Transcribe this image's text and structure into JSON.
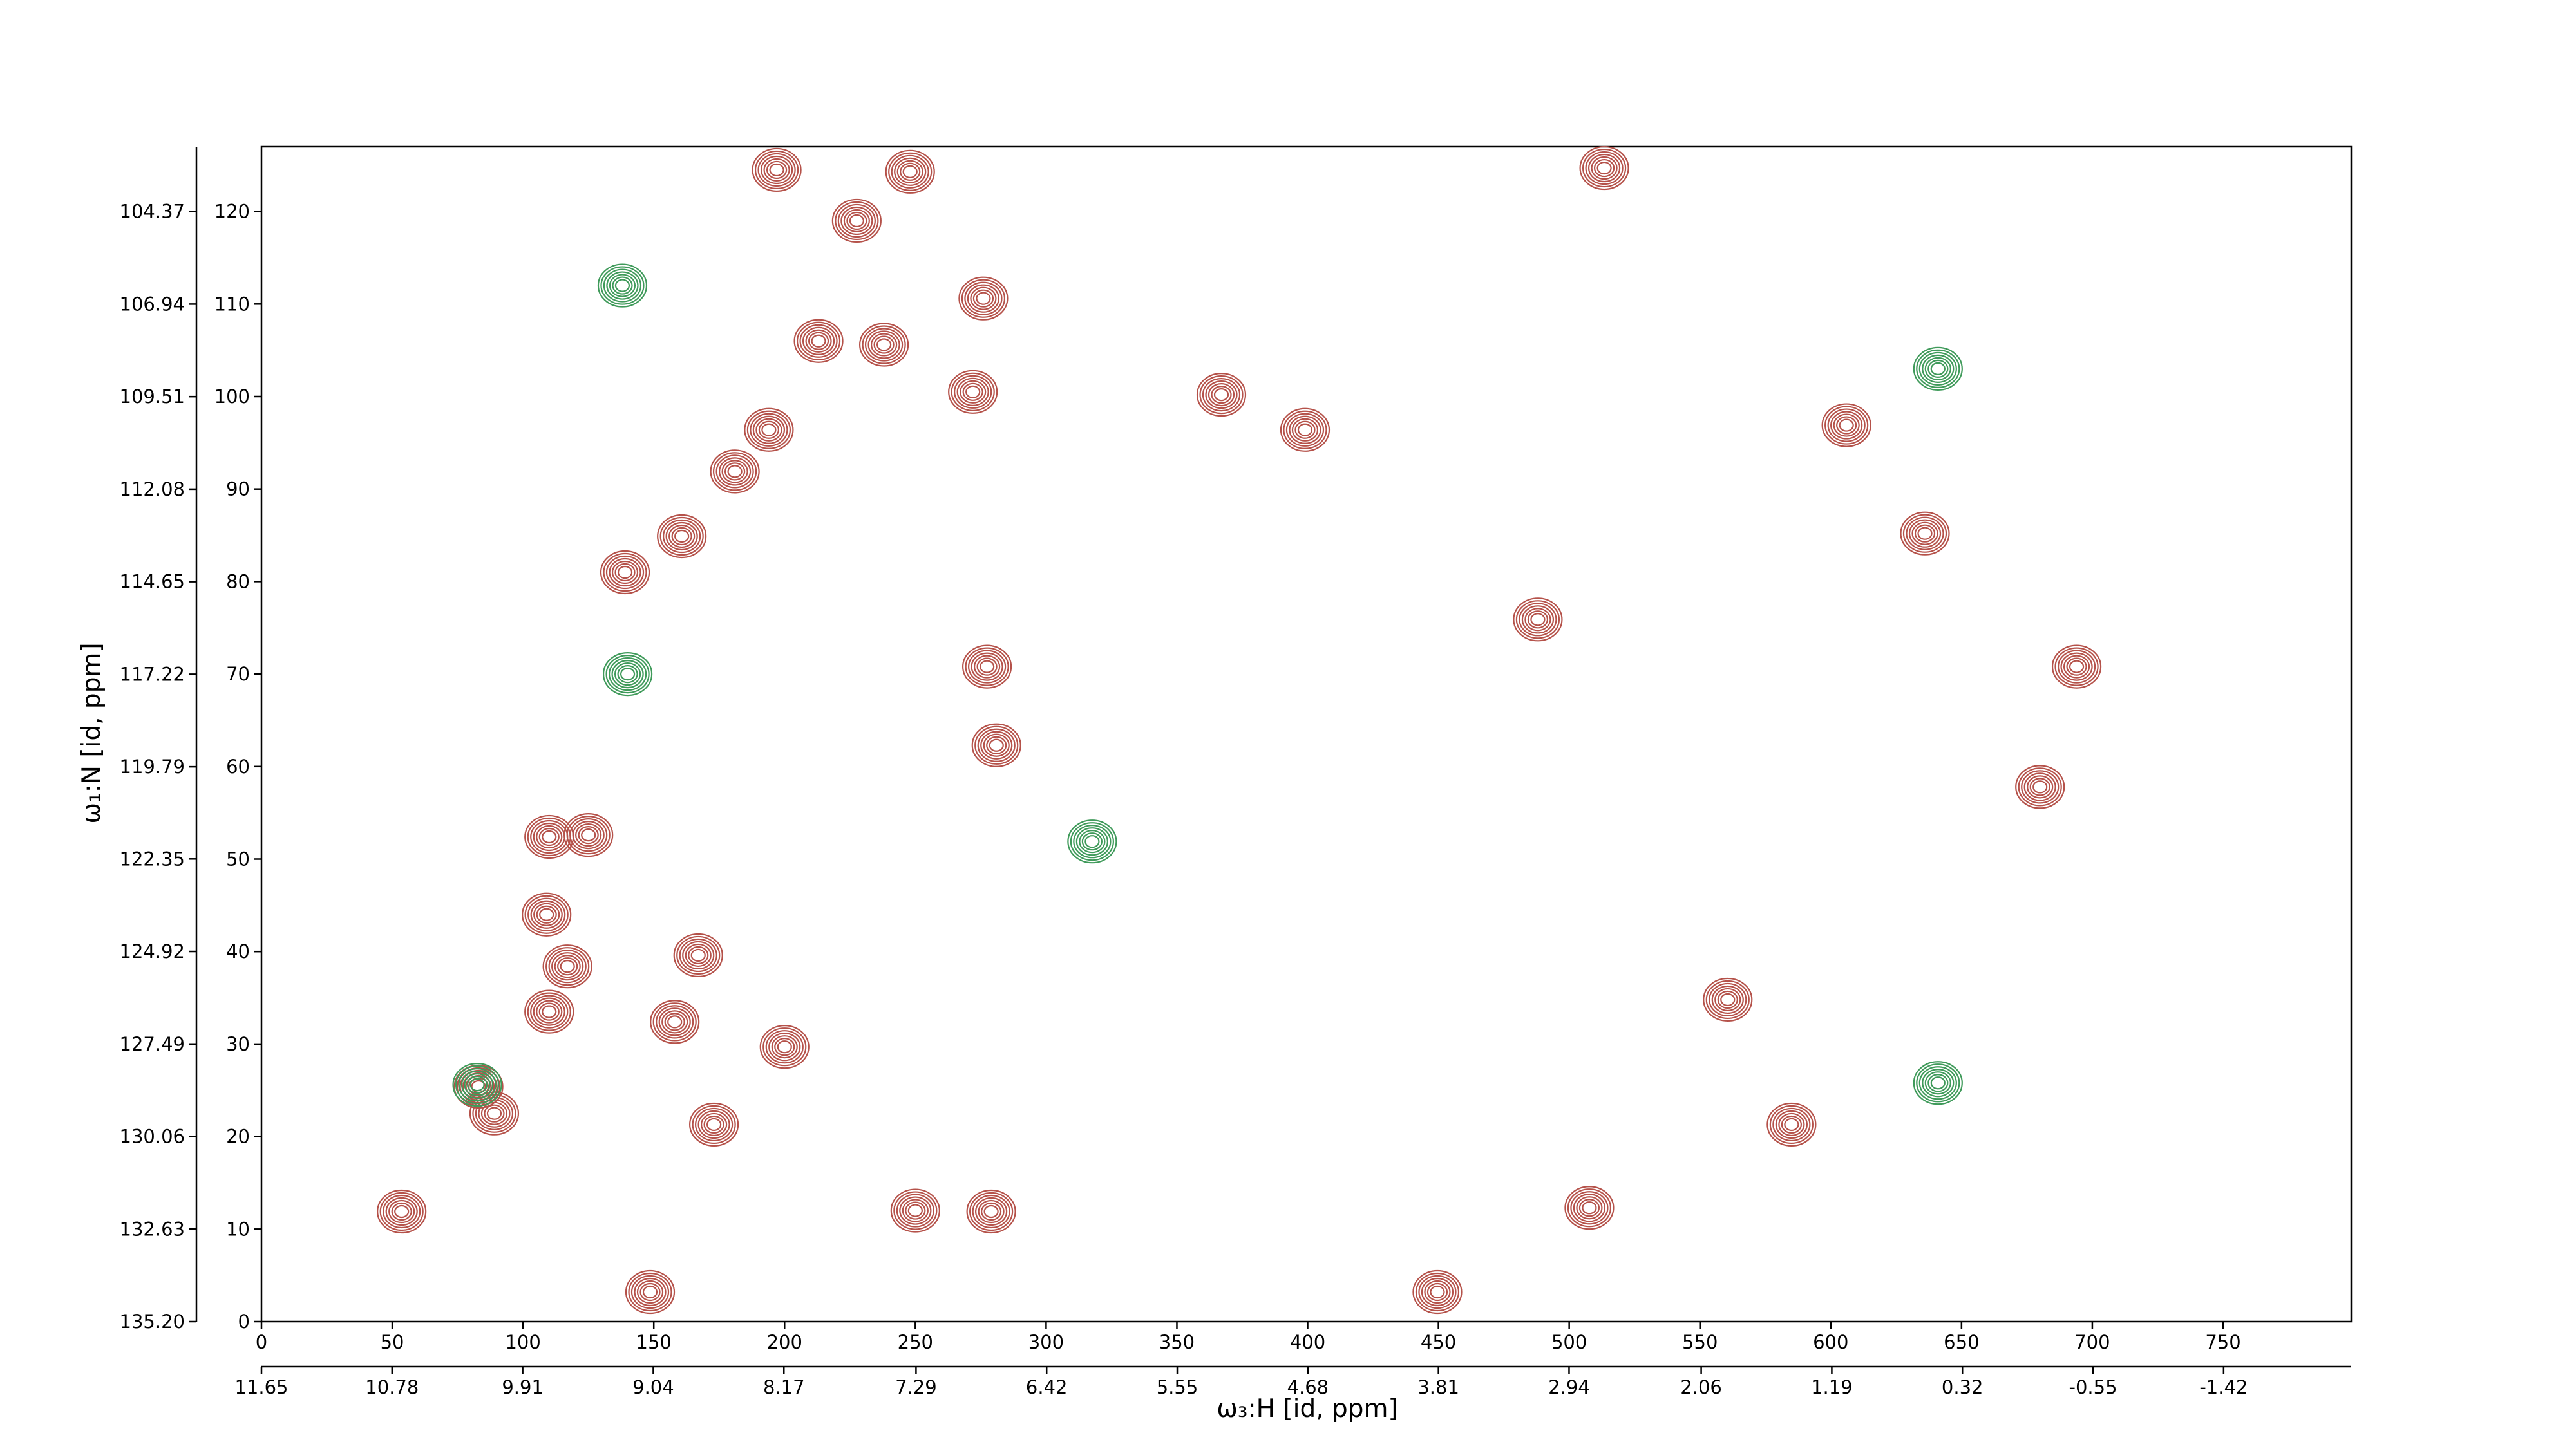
{
  "chart_data": {
    "type": "contour",
    "xlabel": "ω₃:H [id, ppm]",
    "ylabel": "ω₁:N [id, ppm]",
    "xlim": [
      0,
      799
    ],
    "xticks": [
      0,
      50,
      100,
      150,
      200,
      250,
      300,
      350,
      400,
      450,
      500,
      550,
      600,
      650,
      700,
      750
    ],
    "ylim": [
      0,
      127
    ],
    "yticks": [
      0,
      10,
      20,
      30,
      40,
      50,
      60,
      70,
      80,
      90,
      100,
      110,
      120
    ],
    "x2lim": [
      11.65,
      -2.27
    ],
    "x2ticks": [
      11.65,
      10.78,
      9.91,
      9.04,
      8.17,
      7.29,
      6.42,
      5.55,
      4.68,
      3.81,
      2.94,
      2.06,
      1.19,
      0.32,
      -0.55,
      -1.42
    ],
    "y2lim": [
      135.2,
      102.57
    ],
    "y2ticks": [
      {
        "value": 135.2,
        "label": "135.20"
      },
      132.63,
      130.06,
      127.49,
      124.92,
      122.35,
      119.79,
      117.22,
      114.65,
      112.08,
      109.51,
      106.94,
      104.37
    ],
    "series": [
      {
        "color": "#b5524a",
        "x": [
          53.6,
          83,
          89,
          148.6,
          110,
          117,
          109,
          110,
          125,
          160.7,
          139,
          197,
          248,
          227.6,
          276,
          238,
          213,
          272,
          194,
          181,
          277.4,
          281,
          167,
          200,
          173,
          158,
          250,
          279,
          513.4,
          636,
          606,
          399,
          367,
          488,
          585,
          560.6,
          680,
          694,
          507.7,
          449.6
        ],
        "values": [
          11.9,
          25.4,
          22.5,
          3.2,
          33.5,
          38.4,
          44,
          52.4,
          52.6,
          84.9,
          81,
          124.5,
          124.3,
          119,
          110.6,
          105.6,
          106,
          100.5,
          96.4,
          91.9,
          70.8,
          62.3,
          39.6,
          29.7,
          21.3,
          32.4,
          12,
          11.9,
          124.7,
          85.2,
          96.9,
          96.4,
          100.2,
          75.9,
          21.3,
          34.8,
          57.8,
          70.8,
          12.3,
          3.2
        ]
      },
      {
        "color": "#3f9a5a",
        "x": [
          140,
          82.5,
          138,
          641,
          317.6,
          641
        ],
        "values": [
          70,
          25.6,
          112,
          103,
          51.9,
          25.8
        ]
      }
    ]
  }
}
